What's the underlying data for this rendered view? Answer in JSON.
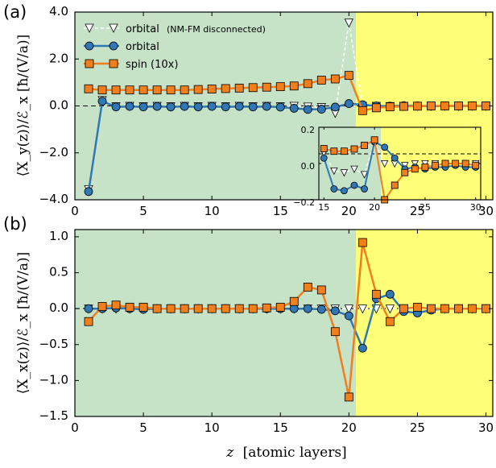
{
  "colors": {
    "nm_region": "#c6e2c7",
    "fm_region": "#ffff77",
    "orbital": "#2f78b5",
    "spin": "#f07f1c",
    "disconnected_line": "#ffffff",
    "disconnected_marker": "#ffffff"
  },
  "chart_data": [
    {
      "panel_label": "(a)",
      "type": "line",
      "xlim": [
        0,
        30.5
      ],
      "ylim": [
        -4,
        4
      ],
      "x_ticks": [
        "0",
        "5",
        "10",
        "15",
        "20",
        "25",
        "30"
      ],
      "y_ticks": [
        "−4.0",
        "−2.0",
        "0.0",
        "2.0",
        "4.0"
      ],
      "ylabel": "⟨X_y(z)⟩/ℰ_x [ħ/(V/a)]",
      "regions": [
        {
          "from": 0,
          "to": 20.5,
          "color": "nm_region"
        },
        {
          "from": 20.5,
          "to": 30.5,
          "color": "fm_region"
        }
      ],
      "legend": [
        "orbital (NM-FM disconnected)",
        "orbital",
        "spin (10x)"
      ],
      "legend_disconnected_main": "orbital",
      "legend_disconnected_note": "(NM-FM disconnected)",
      "series": [
        {
          "name": "orbital (NM-FM disconnected)",
          "x": [
            1,
            2,
            3,
            4,
            5,
            6,
            7,
            8,
            9,
            10,
            11,
            12,
            13,
            14,
            15,
            16,
            17,
            18,
            19,
            20,
            21,
            22,
            23,
            24,
            25,
            26,
            27,
            28,
            29,
            30
          ],
          "values": [
            -3.55,
            0.25,
            -0.02,
            0.0,
            -0.02,
            0.0,
            -0.02,
            0.0,
            -0.02,
            0.0,
            -0.02,
            0.0,
            -0.02,
            0.0,
            -0.02,
            0.0,
            -0.03,
            -0.05,
            -0.3,
            3.55,
            0.0,
            0.0,
            -0.01,
            0.0,
            0.0,
            0.0,
            0.0,
            0.0,
            0.0,
            0.0
          ]
        },
        {
          "name": "orbital",
          "x": [
            1,
            2,
            3,
            4,
            5,
            6,
            7,
            8,
            9,
            10,
            11,
            12,
            13,
            14,
            15,
            16,
            17,
            18,
            19,
            20,
            21,
            22,
            23,
            24,
            25,
            26,
            27,
            28,
            29,
            30
          ],
          "values": [
            -3.65,
            0.2,
            -0.04,
            -0.02,
            -0.04,
            -0.02,
            -0.04,
            -0.02,
            -0.04,
            -0.02,
            -0.04,
            -0.02,
            -0.04,
            -0.02,
            -0.05,
            -0.1,
            -0.15,
            -0.14,
            -0.05,
            0.1,
            0.05,
            0.0,
            -0.01,
            0.01,
            0.0,
            -0.01,
            0.0,
            0.0,
            0.0,
            0.0
          ]
        },
        {
          "name": "spin (10x)",
          "x": [
            1,
            2,
            3,
            4,
            5,
            6,
            7,
            8,
            9,
            10,
            11,
            12,
            13,
            14,
            15,
            16,
            17,
            18,
            19,
            20,
            21,
            22,
            23,
            24,
            25,
            26,
            27,
            28,
            29,
            30
          ],
          "values": [
            0.73,
            0.68,
            0.68,
            0.68,
            0.68,
            0.68,
            0.68,
            0.68,
            0.7,
            0.72,
            0.74,
            0.76,
            0.78,
            0.8,
            0.82,
            0.85,
            0.95,
            1.1,
            1.15,
            1.3,
            -0.2,
            -0.08,
            -0.04,
            -0.02,
            -0.01,
            0.0,
            0.0,
            0.0,
            0.0,
            0.0
          ]
        }
      ],
      "inset": {
        "xlim": [
          14.5,
          30.5
        ],
        "ylim": [
          -0.2,
          0.2
        ],
        "x_ticks": [
          "15",
          "20",
          "25",
          "30"
        ],
        "y_ticks": [
          "−0.2",
          "0.0",
          "0.2"
        ],
        "series": [
          {
            "name": "orbital (NM-FM disconnected)",
            "x": [
              15,
              16,
              17,
              18,
              19,
              20,
              21,
              22,
              23,
              24,
              25,
              26,
              27,
              28,
              29,
              30
            ],
            "values": [
              0.06,
              -0.04,
              -0.05,
              -0.03,
              -0.06,
              0.12,
              0.0,
              0.0,
              -0.01,
              0.0,
              0.0,
              0.0,
              0.0,
              0.0,
              0.0,
              0.0
            ]
          },
          {
            "name": "orbital",
            "x": [
              15,
              16,
              17,
              18,
              19,
              20,
              21,
              22,
              23,
              24,
              25,
              26,
              27,
              28,
              29,
              30
            ],
            "values": [
              0.03,
              -0.14,
              -0.15,
              -0.12,
              -0.14,
              0.12,
              0.09,
              0.03,
              -0.03,
              -0.02,
              -0.03,
              -0.02,
              -0.02,
              -0.01,
              -0.02,
              -0.02
            ]
          },
          {
            "name": "spin (10x)",
            "x": [
              15,
              16,
              17,
              18,
              19,
              20,
              21,
              22,
              23,
              24,
              25,
              26,
              27,
              28,
              29,
              30
            ],
            "values": [
              0.082,
              0.068,
              0.068,
              0.08,
              0.1,
              0.13,
              -0.2,
              -0.12,
              -0.05,
              -0.03,
              -0.02,
              -0.01,
              0.0,
              0.0,
              0.0,
              -0.01
            ]
          }
        ]
      }
    },
    {
      "panel_label": "(b)",
      "type": "line",
      "xlim": [
        0,
        30.5
      ],
      "ylim": [
        -1.5,
        1.1
      ],
      "x_ticks": [
        "0",
        "5",
        "10",
        "15",
        "20",
        "25",
        "30"
      ],
      "y_ticks": [
        "−1.5",
        "−1.0",
        "−0.5",
        "0.0",
        "0.5",
        "1.0"
      ],
      "ylabel": "⟨X_x(z)⟩/ℰ_x [ħ/(V/a)]",
      "xlabel": "z [atomic layers]",
      "xlabel_var": "z",
      "xlabel_unit": "[atomic layers]",
      "regions": [
        {
          "from": 0,
          "to": 20.5,
          "color": "nm_region"
        },
        {
          "from": 20.5,
          "to": 30.5,
          "color": "fm_region"
        }
      ],
      "series": [
        {
          "name": "orbital (NM-FM disconnected)",
          "x": [
            1,
            2,
            3,
            4,
            5,
            6,
            7,
            8,
            9,
            10,
            11,
            12,
            13,
            14,
            15,
            16,
            17,
            18,
            19,
            20,
            21,
            22,
            23,
            24,
            25,
            26,
            27,
            28,
            29,
            30
          ],
          "values": [
            0.0,
            0.0,
            0.0,
            0.0,
            0.0,
            0.0,
            0.0,
            0.0,
            0.0,
            0.0,
            0.0,
            0.0,
            0.0,
            0.0,
            0.0,
            0.0,
            0.0,
            0.0,
            0.0,
            0.0,
            0.0,
            0.0,
            0.0,
            0.0,
            0.0,
            0.0,
            0.0,
            0.0,
            0.0,
            0.0
          ]
        },
        {
          "name": "orbital",
          "x": [
            1,
            2,
            3,
            4,
            5,
            6,
            7,
            8,
            9,
            10,
            11,
            12,
            13,
            14,
            15,
            16,
            17,
            18,
            19,
            20,
            21,
            22,
            23,
            24,
            25,
            26,
            27,
            28,
            29,
            30
          ],
          "values": [
            0.0,
            0.0,
            0.01,
            0.0,
            -0.01,
            0.0,
            0.0,
            0.0,
            0.0,
            0.0,
            0.0,
            0.0,
            0.0,
            0.0,
            0.0,
            0.0,
            0.0,
            -0.01,
            -0.03,
            -0.1,
            -0.55,
            0.14,
            0.2,
            -0.04,
            -0.06,
            -0.02,
            0.0,
            0.0,
            0.0,
            0.0
          ]
        },
        {
          "name": "spin (10x)",
          "x": [
            1,
            2,
            3,
            4,
            5,
            6,
            7,
            8,
            9,
            10,
            11,
            12,
            13,
            14,
            15,
            16,
            17,
            18,
            19,
            20,
            21,
            22,
            23,
            24,
            25,
            26,
            27,
            28,
            29,
            30
          ],
          "values": [
            -0.18,
            0.03,
            0.05,
            0.02,
            0.02,
            0.0,
            0.0,
            0.0,
            0.0,
            0.0,
            0.0,
            0.0,
            0.0,
            0.01,
            0.02,
            0.1,
            0.3,
            0.26,
            -0.32,
            -1.23,
            0.92,
            0.2,
            -0.18,
            0.0,
            0.02,
            0.0,
            0.0,
            0.0,
            0.0,
            0.0
          ]
        }
      ]
    }
  ]
}
